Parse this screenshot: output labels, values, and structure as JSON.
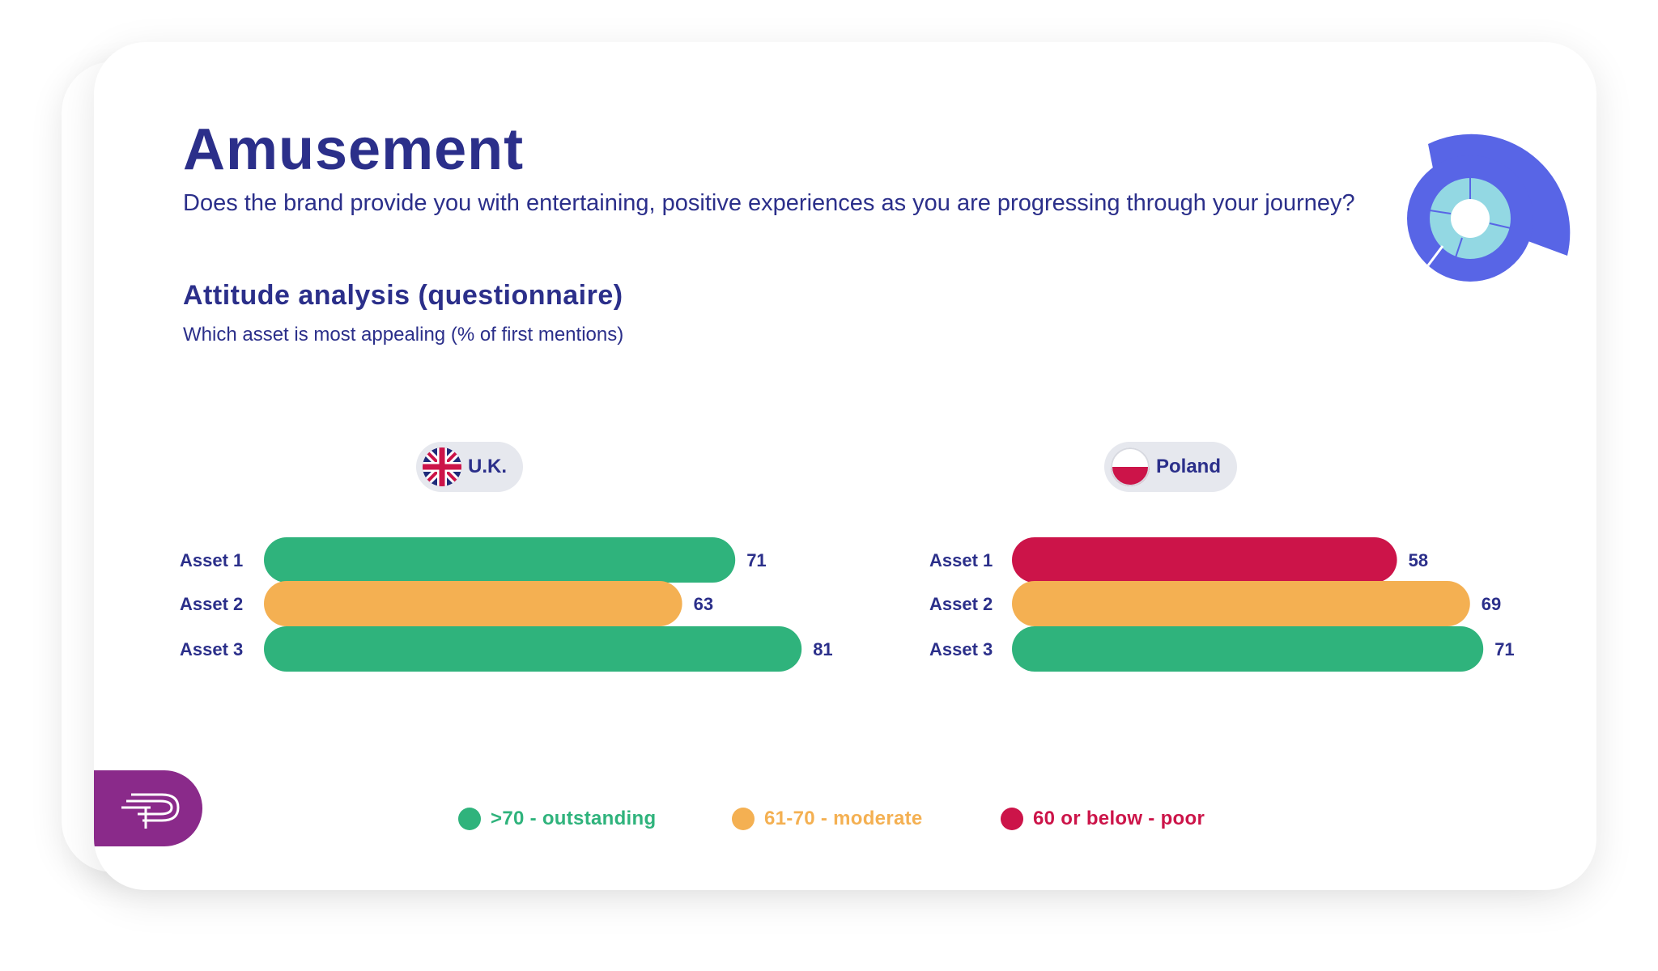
{
  "title": "Amusement",
  "question": "Does the brand provide you with entertaining, positive experiences as you are progressing through your journey?",
  "section_title": "Attitude analysis (questionnaire)",
  "section_subtitle": "Which asset is most appealing (% of first mentions)",
  "emblem_label": "Amusement",
  "colors": {
    "title": "#2b2f8a",
    "outstanding": "#2fb37c",
    "moderate": "#f4b052",
    "poor": "#cc1449",
    "badge_bg": "#e6e8ee",
    "emblem_outer": "#5865e6",
    "emblem_inner": "#93d8e3",
    "logo_tab": "#8a2a8a"
  },
  "legend": [
    {
      "label": ">70 - outstanding",
      "color": "#2fb37c"
    },
    {
      "label": "61-70 - moderate",
      "color": "#f4b052"
    },
    {
      "label": "60 or below - poor",
      "color": "#cc1449"
    }
  ],
  "badges": {
    "uk": {
      "label": "U.K.",
      "flag_icon": "uk-flag-icon"
    },
    "poland": {
      "label": "Poland",
      "flag_icon": "poland-flag-icon"
    }
  },
  "chart_data": [
    {
      "type": "bar",
      "orientation": "horizontal",
      "title": "U.K.",
      "categories": [
        "Asset 1",
        "Asset 2",
        "Asset 3"
      ],
      "values": [
        71,
        63,
        81
      ],
      "colors": [
        "#2fb37c",
        "#f4b052",
        "#2fb37c"
      ],
      "xlim": [
        0,
        100
      ],
      "grid": false
    },
    {
      "type": "bar",
      "orientation": "horizontal",
      "title": "Poland",
      "categories": [
        "Asset 1",
        "Asset 2",
        "Asset 3"
      ],
      "values": [
        58,
        69,
        71
      ],
      "colors": [
        "#cc1449",
        "#f4b052",
        "#2fb37c"
      ],
      "xlim": [
        0,
        100
      ],
      "grid": false
    }
  ]
}
